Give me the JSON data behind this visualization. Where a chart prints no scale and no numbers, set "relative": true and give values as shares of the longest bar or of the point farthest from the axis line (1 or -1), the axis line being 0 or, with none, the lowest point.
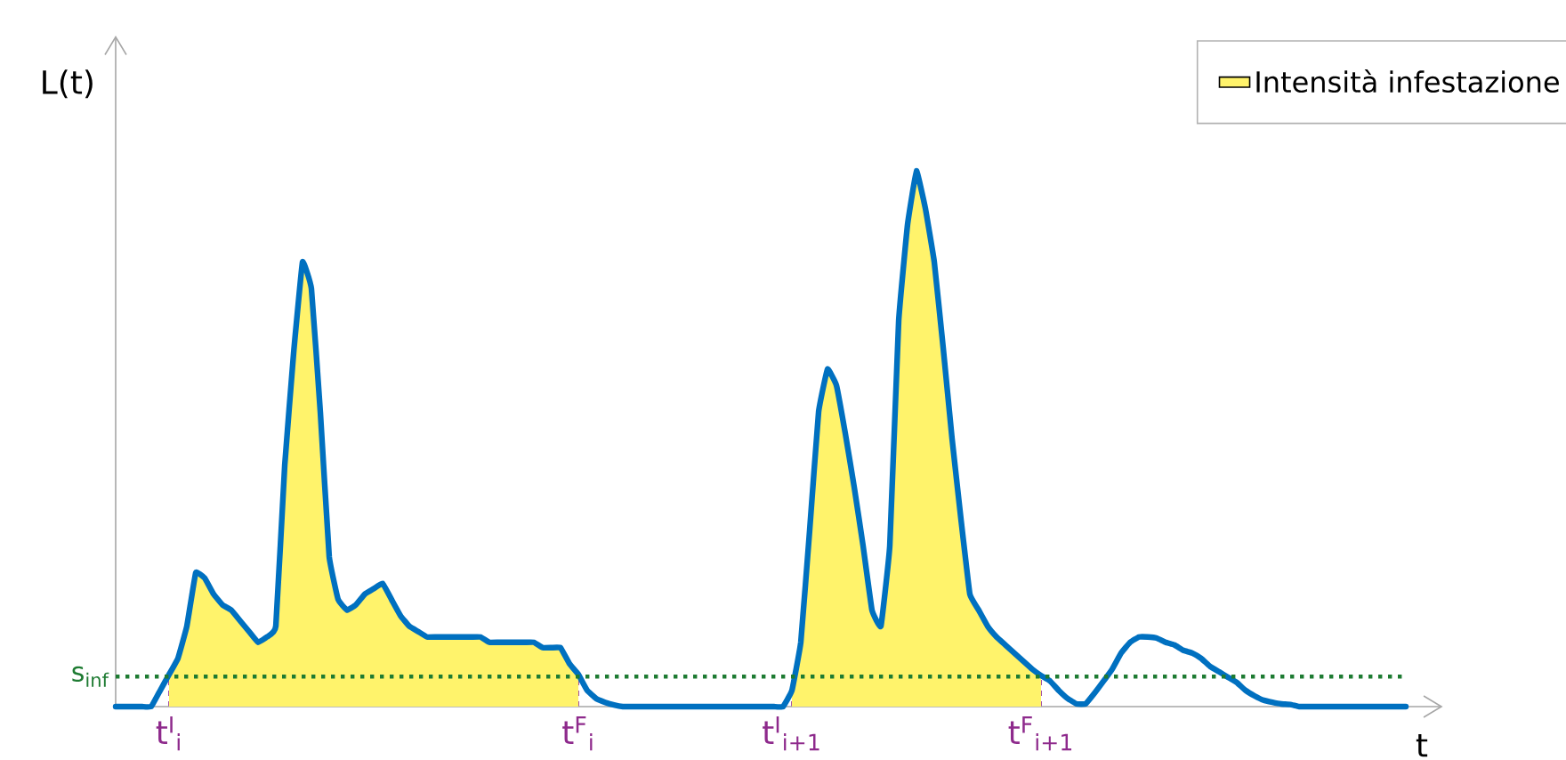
{
  "chart_data": {
    "type": "line",
    "relative": true,
    "xlabel": "t",
    "ylabel": "L(t)",
    "legend": "top right",
    "tick_labels": "x",
    "categories": [
      null,
      null,
      null,
      null,
      null,
      null,
      "t$^{I}$$_{i}$",
      null,
      null,
      null,
      null,
      null,
      null,
      null,
      null,
      null,
      null,
      null,
      null,
      null,
      null,
      null,
      null,
      null,
      null,
      null,
      null,
      null,
      null,
      null,
      null,
      null,
      null,
      null,
      null,
      null,
      null,
      null,
      null,
      null,
      null,
      null,
      null,
      null,
      null,
      null,
      null,
      null,
      null,
      null,
      null,
      null,
      "t$^{F}$$_{i}$",
      null,
      null,
      null,
      null,
      null,
      null,
      null,
      null,
      null,
      null,
      null,
      null,
      null,
      null,
      null,
      null,
      null,
      null,
      null,
      null,
      null,
      null,
      null,
      "t$^{I}$$_{i+1}$",
      null,
      null,
      null,
      null,
      null,
      null,
      null,
      null,
      null,
      null,
      null,
      null,
      null,
      null,
      null,
      null,
      null,
      null,
      null,
      null,
      null,
      null,
      null,
      null,
      null,
      null,
      null,
      "t$^{F}$$_{i+1}$",
      null,
      null,
      null,
      null,
      null,
      null,
      null,
      null,
      null,
      null,
      null,
      null,
      null,
      null,
      null,
      null,
      null,
      null,
      null,
      null,
      null,
      null,
      null,
      null,
      null,
      null,
      null,
      null,
      null,
      null,
      null,
      null,
      null,
      null,
      null,
      null,
      null,
      null,
      null,
      null,
      null
    ],
    "ref_lines": [
      {
        "axis": "y",
        "value": 0.056,
        "label": "s$_{inf}$",
        "color": "#1e7b32",
        "line_style": "dotted"
      }
    ],
    "series": [
      {
        "type": "area",
        "name": "Intensità infestazione",
        "color": "#fff36b",
        "values": [
          null,
          null,
          null,
          null,
          null,
          null,
          0.06,
          0.09,
          0.15,
          0.25,
          0.24,
          0.21,
          0.19,
          0.18,
          0.16,
          0.14,
          0.12,
          0.13,
          0.15,
          0.45,
          0.66,
          0.83,
          0.78,
          0.55,
          0.28,
          0.2,
          0.18,
          0.19,
          0.21,
          0.22,
          0.23,
          0.2,
          0.17,
          0.15,
          0.14,
          0.13,
          0.13,
          0.13,
          0.13,
          0.13,
          0.13,
          0.13,
          0.12,
          0.12,
          0.12,
          0.12,
          0.12,
          0.12,
          0.11,
          0.11,
          0.11,
          0.08,
          0.06,
          null,
          null,
          null,
          null,
          null,
          null,
          null,
          null,
          null,
          null,
          null,
          null,
          null,
          null,
          null,
          null,
          null,
          null,
          null,
          null,
          null,
          null,
          null,
          0.03,
          0.12,
          0.33,
          0.55,
          0.63,
          0.6,
          0.51,
          0.41,
          0.3,
          0.18,
          0.15,
          0.3,
          0.72,
          0.9,
          1.0,
          0.93,
          0.83,
          0.67,
          0.5,
          0.35,
          0.21,
          0.18,
          0.15,
          0.13,
          0.115,
          0.1,
          0.085,
          0.07,
          0.058,
          null,
          null,
          null,
          null,
          null,
          null,
          null,
          null,
          null,
          null,
          null,
          null,
          null,
          null,
          null,
          null,
          null,
          null,
          null,
          null,
          null,
          null,
          null,
          null,
          null,
          null,
          null,
          null,
          null,
          null,
          null,
          null,
          null,
          null,
          null,
          null,
          null,
          null,
          null,
          null,
          null
        ]
      },
      {
        "color": "#0070c0",
        "values": [
          0,
          0,
          0,
          0,
          0,
          0.03,
          0.06,
          0.09,
          0.15,
          0.25,
          0.24,
          0.21,
          0.19,
          0.18,
          0.16,
          0.14,
          0.12,
          0.13,
          0.15,
          0.45,
          0.66,
          0.83,
          0.78,
          0.55,
          0.28,
          0.2,
          0.18,
          0.19,
          0.21,
          0.22,
          0.23,
          0.2,
          0.17,
          0.15,
          0.14,
          0.13,
          0.13,
          0.13,
          0.13,
          0.13,
          0.13,
          0.13,
          0.12,
          0.12,
          0.12,
          0.12,
          0.12,
          0.12,
          0.11,
          0.11,
          0.11,
          0.08,
          0.06,
          0.03,
          0.015,
          0.008,
          0.003,
          0,
          0,
          0,
          0,
          0,
          0,
          0,
          0,
          0,
          0,
          0,
          0,
          0,
          0,
          0,
          0,
          0,
          0,
          0,
          0.03,
          0.12,
          0.33,
          0.55,
          0.63,
          0.6,
          0.51,
          0.41,
          0.3,
          0.18,
          0.15,
          0.3,
          0.72,
          0.9,
          1.0,
          0.93,
          0.83,
          0.67,
          0.5,
          0.35,
          0.21,
          0.18,
          0.15,
          0.13,
          0.115,
          0.1,
          0.085,
          0.07,
          0.058,
          0.048,
          0.03,
          0.015,
          0.005,
          0.005,
          0.025,
          0.047,
          0.07,
          0.1,
          0.12,
          0.13,
          0.13,
          0.128,
          0.12,
          0.115,
          0.105,
          0.1,
          0.09,
          0.075,
          0.065,
          0.055,
          0.045,
          0.03,
          0.02,
          0.012,
          0.008,
          0.005,
          0.004,
          0,
          0,
          0,
          0,
          0,
          0,
          0,
          0,
          0,
          0,
          0,
          0,
          0
        ]
      }
    ]
  }
}
